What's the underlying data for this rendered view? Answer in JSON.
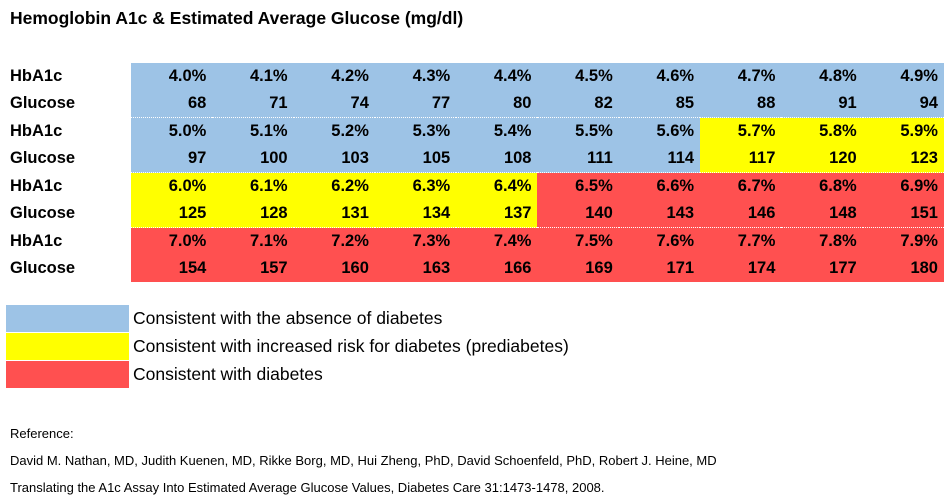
{
  "title": "Hemoglobin A1c & Estimated Average Glucose (mg/dl)",
  "colors": {
    "normal": "#9dc3e6",
    "prediabetes": "#ffff00",
    "diabetes": "#ff5050"
  },
  "chart_data": {
    "type": "table",
    "row_labels": {
      "hba1c": "HbA1c",
      "glucose": "Glucose"
    },
    "blocks": [
      {
        "hba1c": [
          "4.0%",
          "4.1%",
          "4.2%",
          "4.3%",
          "4.4%",
          "4.5%",
          "4.6%",
          "4.7%",
          "4.8%",
          "4.9%"
        ],
        "glucose": [
          "68",
          "71",
          "74",
          "77",
          "80",
          "82",
          "85",
          "88",
          "91",
          "94"
        ],
        "category": [
          "normal",
          "normal",
          "normal",
          "normal",
          "normal",
          "normal",
          "normal",
          "normal",
          "normal",
          "normal"
        ]
      },
      {
        "hba1c": [
          "5.0%",
          "5.1%",
          "5.2%",
          "5.3%",
          "5.4%",
          "5.5%",
          "5.6%",
          "5.7%",
          "5.8%",
          "5.9%"
        ],
        "glucose": [
          "97",
          "100",
          "103",
          "105",
          "108",
          "111",
          "114",
          "117",
          "120",
          "123"
        ],
        "category": [
          "normal",
          "normal",
          "normal",
          "normal",
          "normal",
          "normal",
          "normal",
          "prediabetes",
          "prediabetes",
          "prediabetes"
        ]
      },
      {
        "hba1c": [
          "6.0%",
          "6.1%",
          "6.2%",
          "6.3%",
          "6.4%",
          "6.5%",
          "6.6%",
          "6.7%",
          "6.8%",
          "6.9%"
        ],
        "glucose": [
          "125",
          "128",
          "131",
          "134",
          "137",
          "140",
          "143",
          "146",
          "148",
          "151"
        ],
        "category": [
          "prediabetes",
          "prediabetes",
          "prediabetes",
          "prediabetes",
          "prediabetes",
          "diabetes",
          "diabetes",
          "diabetes",
          "diabetes",
          "diabetes"
        ]
      },
      {
        "hba1c": [
          "7.0%",
          "7.1%",
          "7.2%",
          "7.3%",
          "7.4%",
          "7.5%",
          "7.6%",
          "7.7%",
          "7.8%",
          "7.9%"
        ],
        "glucose": [
          "154",
          "157",
          "160",
          "163",
          "166",
          "169",
          "171",
          "174",
          "177",
          "180"
        ],
        "category": [
          "diabetes",
          "diabetes",
          "diabetes",
          "diabetes",
          "diabetes",
          "diabetes",
          "diabetes",
          "diabetes",
          "diabetes",
          "diabetes"
        ]
      }
    ]
  },
  "legend": [
    {
      "key": "normal",
      "label": "Consistent with the absence of diabetes"
    },
    {
      "key": "prediabetes",
      "label": "Consistent with increased risk for diabetes (prediabetes)"
    },
    {
      "key": "diabetes",
      "label": "Consistent with diabetes"
    }
  ],
  "reference": {
    "heading": "Reference:",
    "authors": "David M. Nathan, MD, Judith Kuenen, MD, Rikke Borg, MD, Hui Zheng, PhD, David Schoenfeld, PhD, Robert J. Heine, MD",
    "citation": "Translating the A1c Assay Into Estimated Average Glucose Values, Diabetes Care 31:1473-1478, 2008."
  }
}
